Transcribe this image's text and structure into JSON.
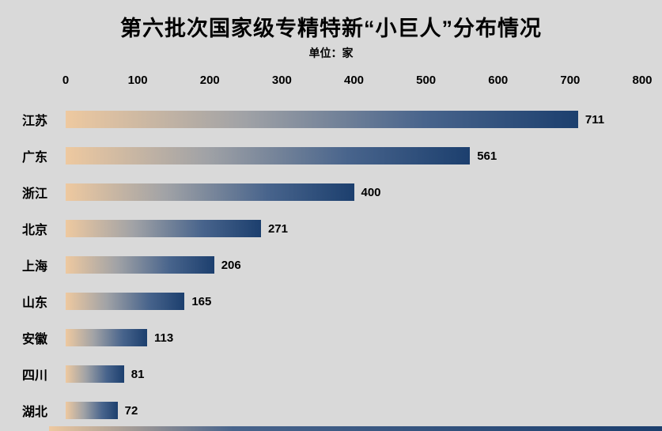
{
  "chart_data": {
    "type": "bar",
    "orientation": "horizontal",
    "title": "第六批次国家级专精特新“小巨人”分布情况",
    "subtitle": "单位：家",
    "categories": [
      "江苏",
      "广东",
      "浙江",
      "北京",
      "上海",
      "山东",
      "安徽",
      "四川",
      "湖北"
    ],
    "values": [
      711,
      561,
      400,
      271,
      206,
      165,
      113,
      81,
      72
    ],
    "xlim": [
      0,
      800
    ],
    "x_ticks": [
      0,
      100,
      200,
      300,
      400,
      500,
      600,
      700,
      800
    ],
    "grid": false,
    "legend": false,
    "colors": {
      "background": "#d9d9d9",
      "bar_gradient_start": "#eec9a0",
      "bar_gradient_end": "#1c3f6e",
      "text": "#000000"
    }
  }
}
